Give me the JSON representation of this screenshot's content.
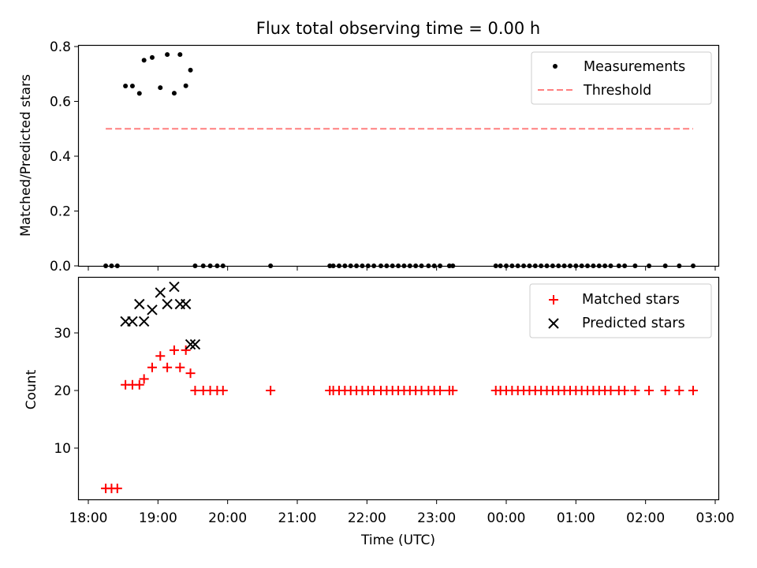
{
  "chart_data": {
    "title": "Flux total observing time = 0.00 h",
    "panels": [
      {
        "type": "scatter",
        "ylabel": "Matched/Predicted stars",
        "ylim": [
          0,
          0.81
        ],
        "yticks": [
          0.0,
          0.2,
          0.4,
          0.6,
          0.8
        ],
        "ytick_labels": [
          "0.0",
          "0.2",
          "0.4",
          "0.6",
          "0.8"
        ],
        "legend": {
          "placement": "top-right",
          "entries": [
            "Measurements",
            "Threshold"
          ]
        },
        "series": [
          {
            "name": "Measurements",
            "marker": "dot",
            "color": "#000000",
            "x": [
              "18:15",
              "18:20",
              "18:25",
              "18:32",
              "18:38",
              "18:44",
              "18:48",
              "18:55",
              "19:02",
              "19:08",
              "19:14",
              "19:19",
              "19:24",
              "19:28",
              "19:32",
              "19:39",
              "19:45",
              "19:51",
              "19:56",
              "20:37",
              "21:28",
              "21:31",
              "21:36",
              "21:41",
              "21:46",
              "21:51",
              "21:56",
              "22:01",
              "22:06",
              "22:12",
              "22:17",
              "22:22",
              "22:27",
              "22:32",
              "22:37",
              "22:42",
              "22:47",
              "22:53",
              "22:58",
              "23:03",
              "23:11",
              "23:14",
              "23:51",
              "23:55",
              "00:00",
              "00:05",
              "00:10",
              "00:15",
              "00:20",
              "00:25",
              "00:30",
              "00:35",
              "00:40",
              "00:45",
              "00:50",
              "00:55",
              "01:00",
              "01:05",
              "01:10",
              "01:15",
              "01:20",
              "01:25",
              "01:30",
              "01:37",
              "01:42",
              "01:51",
              "02:03",
              "02:17",
              "02:29",
              "02:41"
            ],
            "y": [
              0.0,
              0.0,
              0.0,
              0.656,
              0.656,
              0.629,
              0.75,
              0.76,
              0.65,
              0.771,
              0.63,
              0.771,
              0.657,
              0.714,
              0.0,
              0.0,
              0.0,
              0.0,
              0.0,
              0.0,
              0.0,
              0.0,
              0.0,
              0.0,
              0.0,
              0.0,
              0.0,
              0.0,
              0.0,
              0.0,
              0.0,
              0.0,
              0.0,
              0.0,
              0.0,
              0.0,
              0.0,
              0.0,
              0.0,
              0.0,
              0.0,
              0.0,
              0.0,
              0.0,
              0.0,
              0.0,
              0.0,
              0.0,
              0.0,
              0.0,
              0.0,
              0.0,
              0.0,
              0.0,
              0.0,
              0.0,
              0.0,
              0.0,
              0.0,
              0.0,
              0.0,
              0.0,
              0.0,
              0.0,
              0.0,
              0.0,
              0.0,
              0.0,
              0.0,
              0.0
            ]
          },
          {
            "name": "Threshold",
            "type": "line",
            "style": "dashed",
            "color": "#ff7f7f",
            "x": [
              "18:15",
              "02:41"
            ],
            "y": [
              0.5,
              0.5
            ]
          }
        ]
      },
      {
        "type": "scatter",
        "ylabel": "Count",
        "xlabel": "Time (UTC)",
        "ylim": [
          1,
          40
        ],
        "yticks": [
          10,
          20,
          30
        ],
        "ytick_labels": [
          "10",
          "20",
          "30"
        ],
        "xticks": [
          "18:00",
          "19:00",
          "20:00",
          "21:00",
          "22:00",
          "23:00",
          "00:00",
          "01:00",
          "02:00",
          "03:00"
        ],
        "xtick_labels": [
          "18:00",
          "19:00",
          "20:00",
          "21:00",
          "22:00",
          "23:00",
          "00:00",
          "01:00",
          "02:00",
          "03:00"
        ],
        "legend": {
          "placement": "top-right",
          "entries": [
            "Matched stars",
            "Predicted stars"
          ]
        },
        "series": [
          {
            "name": "Matched stars",
            "marker": "plus",
            "color": "#ff0000",
            "x": [
              "18:15",
              "18:20",
              "18:25",
              "18:32",
              "18:38",
              "18:44",
              "18:48",
              "18:55",
              "19:02",
              "19:08",
              "19:14",
              "19:19",
              "19:24",
              "19:28",
              "19:32",
              "19:39",
              "19:45",
              "19:51",
              "19:56",
              "20:37",
              "21:28",
              "21:31",
              "21:36",
              "21:41",
              "21:46",
              "21:51",
              "21:56",
              "22:01",
              "22:06",
              "22:12",
              "22:17",
              "22:22",
              "22:27",
              "22:32",
              "22:37",
              "22:42",
              "22:47",
              "22:53",
              "22:58",
              "23:03",
              "23:11",
              "23:14",
              "23:51",
              "23:55",
              "00:00",
              "00:05",
              "00:10",
              "00:15",
              "00:20",
              "00:25",
              "00:30",
              "00:35",
              "00:40",
              "00:45",
              "00:50",
              "00:55",
              "01:00",
              "01:05",
              "01:10",
              "01:15",
              "01:20",
              "01:25",
              "01:30",
              "01:37",
              "01:42",
              "01:51",
              "02:03",
              "02:17",
              "02:29",
              "02:41"
            ],
            "y": [
              3,
              3,
              3,
              21,
              21,
              21,
              22,
              24,
              26,
              24,
              27,
              24,
              27,
              23,
              20,
              20,
              20,
              20,
              20,
              20,
              20,
              20,
              20,
              20,
              20,
              20,
              20,
              20,
              20,
              20,
              20,
              20,
              20,
              20,
              20,
              20,
              20,
              20,
              20,
              20,
              20,
              20,
              20,
              20,
              20,
              20,
              20,
              20,
              20,
              20,
              20,
              20,
              20,
              20,
              20,
              20,
              20,
              20,
              20,
              20,
              20,
              20,
              20,
              20,
              20,
              20,
              20,
              20,
              20,
              20
            ]
          },
          {
            "name": "Predicted stars",
            "marker": "x",
            "color": "#000000",
            "x": [
              "18:32",
              "18:38",
              "18:44",
              "18:48",
              "18:55",
              "19:02",
              "19:08",
              "19:14",
              "19:19",
              "19:24",
              "19:28",
              "19:32"
            ],
            "y": [
              32,
              32,
              35,
              32,
              34,
              37,
              35,
              38,
              35,
              35,
              28,
              28
            ]
          }
        ]
      }
    ]
  }
}
